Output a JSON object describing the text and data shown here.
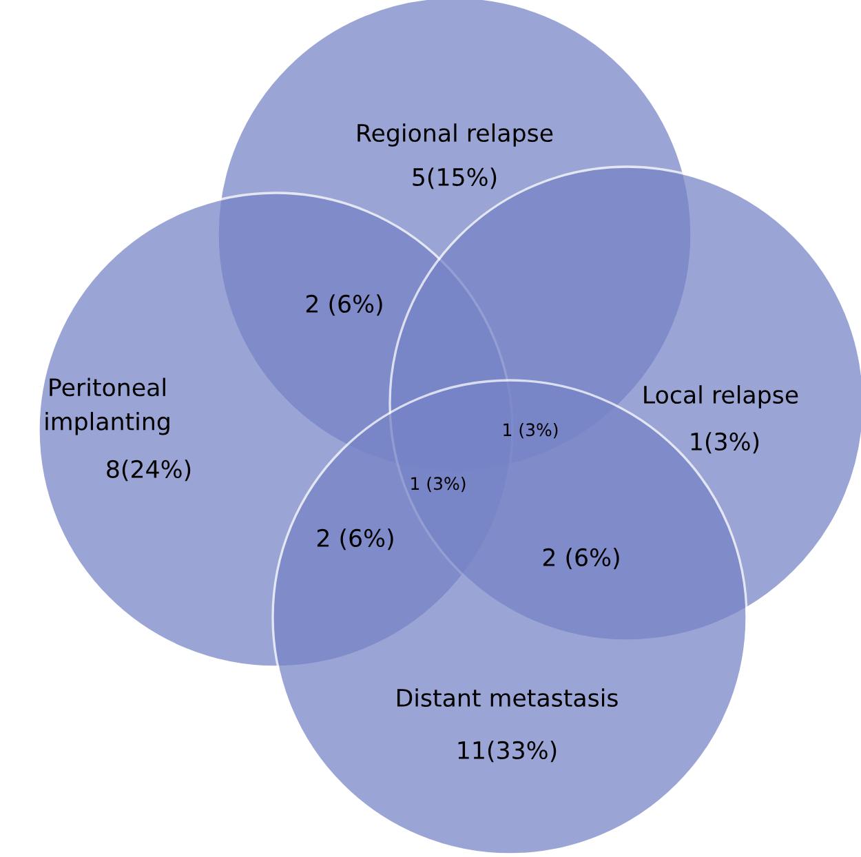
{
  "chart_data": {
    "type": "other",
    "categories": [
      "Regional relapse",
      "Peritoneal\nimplanting",
      "Local relapse",
      "Distant metastasis"
    ],
    "values": [
      5,
      8,
      1,
      11
    ],
    "value_labels": [
      "5(15%)",
      "8(24%)",
      "1(3%)",
      "11(33%)"
    ],
    "colors": [
      "#7683c6",
      "#7683c6",
      "#7683c6",
      "#7683c6"
    ],
    "annotations": [
      "2 (6%)",
      "1 (3%)",
      "1 (3%)",
      "2 (6%)",
      "2 (6%)"
    ]
  }
}
